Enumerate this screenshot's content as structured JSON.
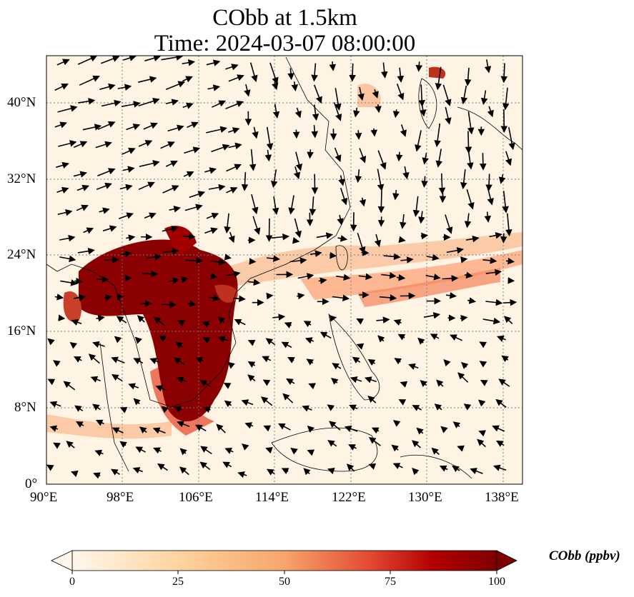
{
  "title": "CObb at 1.5km",
  "subtitle": "Time: 2024-03-07 08:00:00",
  "colorbar": {
    "label": "CObb (ppbv)",
    "ticks": [
      "0",
      "25",
      "50",
      "75",
      "100"
    ],
    "min": 0,
    "max": 100,
    "colormap": "OrRd",
    "extend": "both"
  },
  "lon_ticks": [
    "90°E",
    "98°E",
    "106°E",
    "114°E",
    "122°E",
    "130°E",
    "138°E"
  ],
  "lat_ticks": [
    "0°",
    "8°N",
    "16°N",
    "24°N",
    "32°N",
    "40°N"
  ],
  "extent": {
    "lon_min": 90,
    "lon_max": 140,
    "lat_min": 0,
    "lat_max": 44
  },
  "gridlines": true,
  "colors": {
    "low": "#fff5eb",
    "mid": "#fdae6b",
    "high": "#7f0000"
  }
}
